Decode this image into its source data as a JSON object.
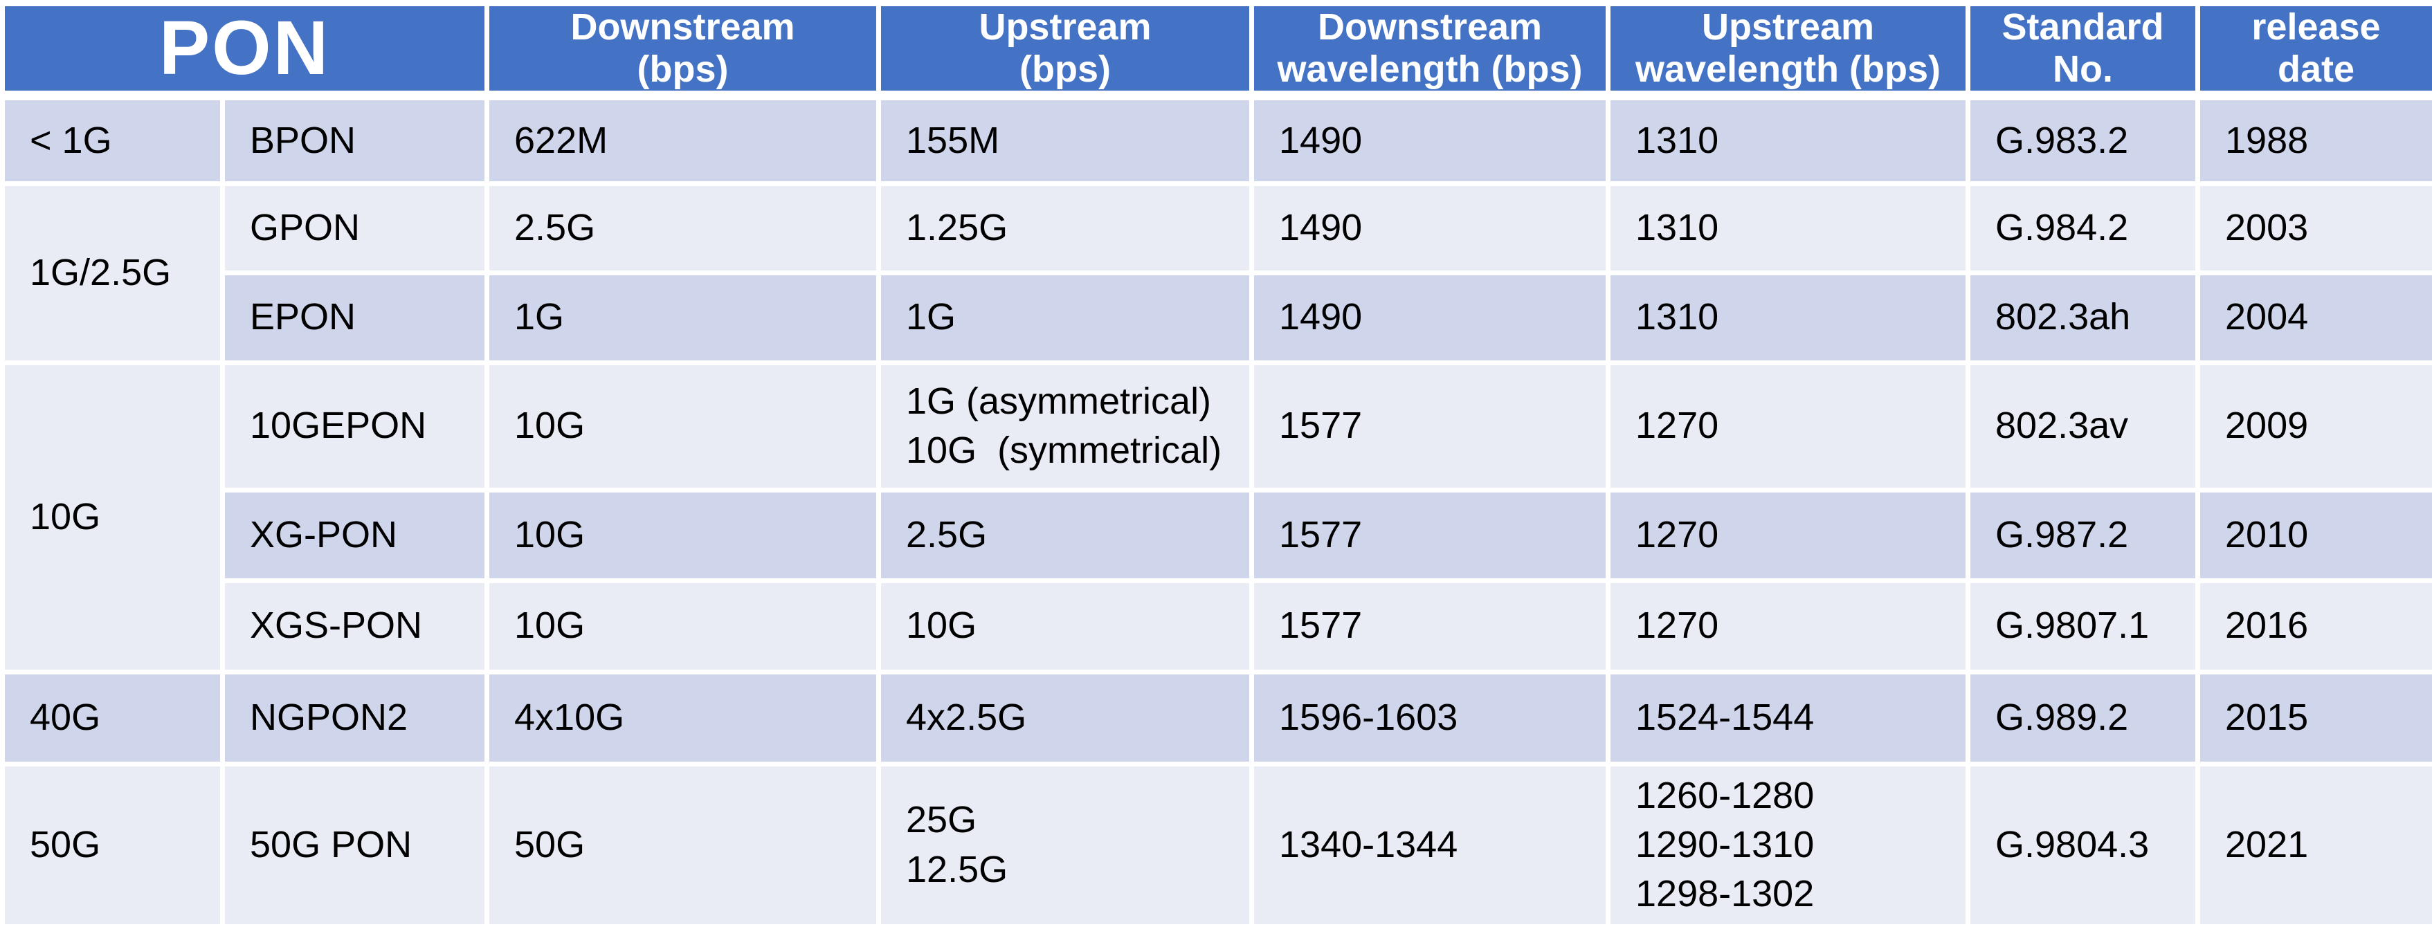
{
  "table": {
    "title": "PON",
    "columns": [
      "Downstream\n(bps)",
      "Upstream\n(bps)",
      "Downstream\nwavelength (bps)",
      "Upstream\nwavelength (bps)",
      "Standard\nNo.",
      "release\ndate"
    ],
    "groups": [
      {
        "category": "< 1G",
        "rows": [
          {
            "name": "BPON",
            "downstream": "622M",
            "upstream": "155M",
            "downstream_wavelength": "1490",
            "upstream_wavelength": "1310",
            "standard_no": "G.983.2",
            "release_date": "1988"
          }
        ]
      },
      {
        "category": "1G/2.5G",
        "rows": [
          {
            "name": "GPON",
            "downstream": "2.5G",
            "upstream": "1.25G",
            "downstream_wavelength": "1490",
            "upstream_wavelength": "1310",
            "standard_no": "G.984.2",
            "release_date": "2003"
          },
          {
            "name": "EPON",
            "downstream": "1G",
            "upstream": "1G",
            "downstream_wavelength": "1490",
            "upstream_wavelength": "1310",
            "standard_no": "802.3ah",
            "release_date": "2004"
          }
        ]
      },
      {
        "category": "10G",
        "rows": [
          {
            "name": "10GEPON",
            "downstream": "10G",
            "upstream": "1G (asymmetrical)\n10G  (symmetrical)",
            "downstream_wavelength": "1577",
            "upstream_wavelength": "1270",
            "standard_no": "802.3av",
            "release_date": "2009"
          },
          {
            "name": "XG-PON",
            "downstream": "10G",
            "upstream": "2.5G",
            "downstream_wavelength": "1577",
            "upstream_wavelength": "1270",
            "standard_no": "G.987.2",
            "release_date": "2010"
          },
          {
            "name": "XGS-PON",
            "downstream": "10G",
            "upstream": "10G",
            "downstream_wavelength": "1577",
            "upstream_wavelength": "1270",
            "standard_no": "G.9807.1",
            "release_date": "2016"
          }
        ]
      },
      {
        "category": "40G",
        "rows": [
          {
            "name": "NGPON2",
            "downstream": "4x10G",
            "upstream": "4x2.5G",
            "downstream_wavelength": "1596-1603",
            "upstream_wavelength": "1524-1544",
            "standard_no": "G.989.2",
            "release_date": "2015"
          }
        ]
      },
      {
        "category": "50G",
        "rows": [
          {
            "name": "50G PON",
            "downstream": "50G",
            "upstream": "25G\n12.5G",
            "downstream_wavelength": "1340-1344",
            "upstream_wavelength": "1260-1280\n1290-1310\n1298-1302",
            "standard_no": "G.9804.3",
            "release_date": "2021"
          }
        ]
      }
    ],
    "colors": {
      "header_bg": "#4472C4",
      "header_text": "#FFFFFF",
      "row_band_dark": "#CFD5EA",
      "row_band_light": "#E9EBF5",
      "grid": "#FFFFFF",
      "body_text": "#000000"
    }
  }
}
